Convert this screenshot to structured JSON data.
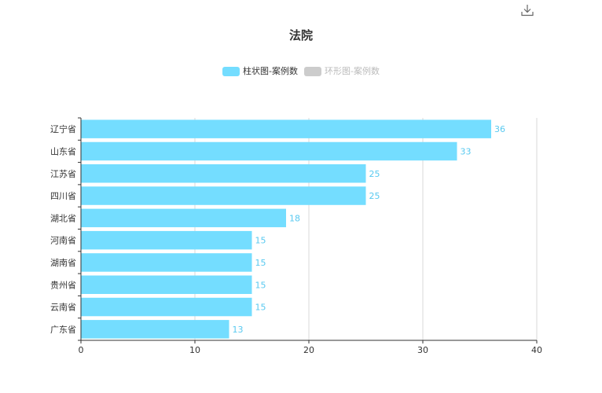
{
  "toolbar": {
    "download_icon": "download-icon"
  },
  "chart_data": {
    "type": "bar",
    "orientation": "horizontal",
    "title": "法院",
    "legend": [
      {
        "label": "柱状图-案例数",
        "color": "#74DDFF",
        "active": true
      },
      {
        "label": "环形图-案例数",
        "color": "#CCCCCC",
        "active": false
      }
    ],
    "legend_position": "top-center",
    "categories": [
      "辽宁省",
      "山东省",
      "江苏省",
      "四川省",
      "湖北省",
      "河南省",
      "湖南省",
      "贵州省",
      "云南省",
      "广东省"
    ],
    "series": [
      {
        "name": "柱状图-案例数",
        "values": [
          36,
          33,
          25,
          25,
          18,
          15,
          15,
          15,
          15,
          13
        ],
        "color": "#74DDFF"
      }
    ],
    "xlim": [
      0,
      40
    ],
    "xticks": [
      0,
      10,
      20,
      30,
      40
    ],
    "grid": true,
    "data_labels": true,
    "label_color": "#58C9F0"
  }
}
